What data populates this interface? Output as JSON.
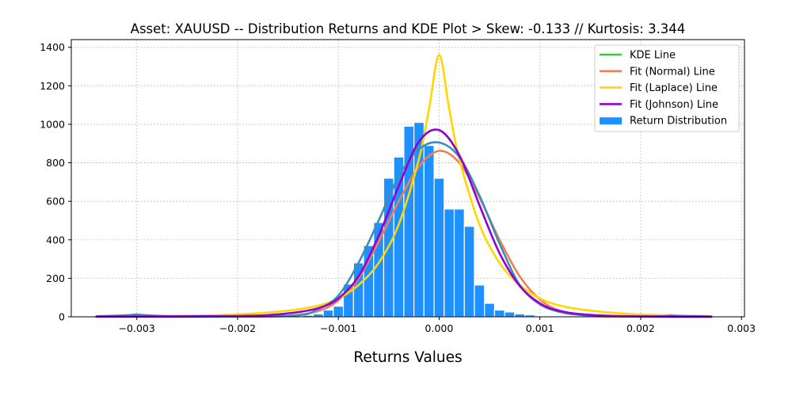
{
  "chart_data": {
    "type": "bar",
    "title": "Asset: XAUUSD -- Distribution Returns and KDE Plot > Skew: -0.133 // Kurtosis: 3.344",
    "xlabel": "Returns Values",
    "ylabel": "",
    "xlim": [
      -0.00365,
      0.00303
    ],
    "ylim": [
      0,
      1440
    ],
    "x_ticks": [
      {
        "value": -0.003,
        "label": "−0.003"
      },
      {
        "value": -0.002,
        "label": "−0.002"
      },
      {
        "value": -0.001,
        "label": "−0.001"
      },
      {
        "value": 0.0,
        "label": "0.000"
      },
      {
        "value": 0.001,
        "label": "0.001"
      },
      {
        "value": 0.002,
        "label": "0.002"
      },
      {
        "value": 0.003,
        "label": "0.003"
      }
    ],
    "y_ticks": [
      {
        "value": 0,
        "label": "0"
      },
      {
        "value": 200,
        "label": "200"
      },
      {
        "value": 400,
        "label": "400"
      },
      {
        "value": 600,
        "label": "600"
      },
      {
        "value": 800,
        "label": "800"
      },
      {
        "value": 1000,
        "label": "1000"
      },
      {
        "value": 1200,
        "label": "1200"
      },
      {
        "value": 1400,
        "label": "1400"
      }
    ],
    "grid": true,
    "legend_position": "top-right",
    "legend": [
      {
        "label": "KDE Line",
        "kind": "line",
        "color": "#33cc33"
      },
      {
        "label": "Fit (Normal) Line",
        "kind": "line",
        "color": "#f08050"
      },
      {
        "label": "Fit (Laplace) Line",
        "kind": "line",
        "color": "#ffd700"
      },
      {
        "label": "Fit (Johnson) Line",
        "kind": "line",
        "color": "#9400d3"
      },
      {
        "label": "Return Distribution",
        "kind": "bar",
        "color": "#1e90ff"
      }
    ],
    "histogram": {
      "name": "Return Distribution",
      "color": "#1e90ff",
      "bin_width": 0.0001,
      "bin_centers": [
        -0.0013,
        -0.0012,
        -0.0011,
        -0.001,
        -0.0009,
        -0.0008,
        -0.0007,
        -0.0006,
        -0.0005,
        -0.0004,
        -0.0003,
        -0.0002,
        -0.0001,
        0.0,
        0.0001,
        0.0002,
        0.0003,
        0.0004,
        0.0005,
        0.0006,
        0.0007,
        0.0008,
        0.0009,
        0.001,
        0.0011,
        0.0012,
        0.0013
      ],
      "counts": [
        8,
        15,
        35,
        55,
        170,
        280,
        370,
        490,
        720,
        830,
        990,
        1010,
        890,
        720,
        560,
        560,
        470,
        165,
        70,
        35,
        25,
        15,
        10,
        5,
        3,
        2,
        1
      ]
    },
    "series": [
      {
        "name": "KDE Line",
        "color": "#33cc33",
        "x": [
          -0.0034,
          -0.0031,
          -0.003,
          -0.0029,
          -0.0026,
          -0.002,
          -0.0014,
          -0.0012,
          -0.001,
          -0.0008,
          -0.0006,
          -0.0004,
          -0.0002,
          0.0,
          0.0002,
          0.0004,
          0.0006,
          0.0008,
          0.001,
          0.0012,
          0.0014,
          0.0018,
          0.0022,
          0.0023,
          0.0024,
          0.0027
        ],
        "y": [
          3,
          8,
          12,
          8,
          2,
          2,
          8,
          40,
          110,
          280,
          500,
          730,
          870,
          905,
          830,
          630,
          380,
          165,
          65,
          25,
          10,
          3,
          3,
          7,
          4,
          2
        ]
      },
      {
        "name": "Fit (Normal) Line",
        "color": "#f08050",
        "x": [
          -0.0034,
          -0.002,
          -0.0015,
          -0.0012,
          -0.001,
          -0.0008,
          -0.0006,
          -0.0004,
          -0.0002,
          0.0,
          0.0002,
          0.0004,
          0.0006,
          0.0008,
          0.001,
          0.0012,
          0.0015,
          0.002,
          0.0027
        ],
        "y": [
          0,
          0,
          5,
          30,
          85,
          200,
          390,
          600,
          780,
          862,
          800,
          620,
          400,
          210,
          90,
          32,
          5,
          0,
          0
        ]
      },
      {
        "name": "Fit (Laplace) Line",
        "color": "#ffd700",
        "x": [
          -0.0034,
          -0.003,
          -0.0025,
          -0.002,
          -0.0015,
          -0.0012,
          -0.001,
          -0.0008,
          -0.0006,
          -0.0004,
          -0.0002,
          -0.0001,
          0.0,
          0.0001,
          0.0002,
          0.0004,
          0.0006,
          0.0008,
          0.001,
          0.0012,
          0.0015,
          0.002,
          0.0027
        ],
        "y": [
          3,
          4,
          6,
          12,
          32,
          58,
          95,
          165,
          280,
          480,
          820,
          1080,
          1360,
          1080,
          820,
          480,
          280,
          165,
          95,
          58,
          32,
          12,
          4
        ]
      },
      {
        "name": "Fit (Johnson) Line",
        "color": "#9400d3",
        "x": [
          -0.0034,
          -0.002,
          -0.0015,
          -0.0012,
          -0.001,
          -0.0008,
          -0.0006,
          -0.0004,
          -0.0002,
          0.0,
          0.0002,
          0.0004,
          0.0006,
          0.0008,
          0.001,
          0.0012,
          0.0015,
          0.002,
          0.0027
        ],
        "y": [
          1,
          4,
          18,
          45,
          95,
          210,
          420,
          680,
          910,
          970,
          840,
          580,
          330,
          160,
          70,
          30,
          10,
          2,
          0
        ]
      }
    ]
  }
}
